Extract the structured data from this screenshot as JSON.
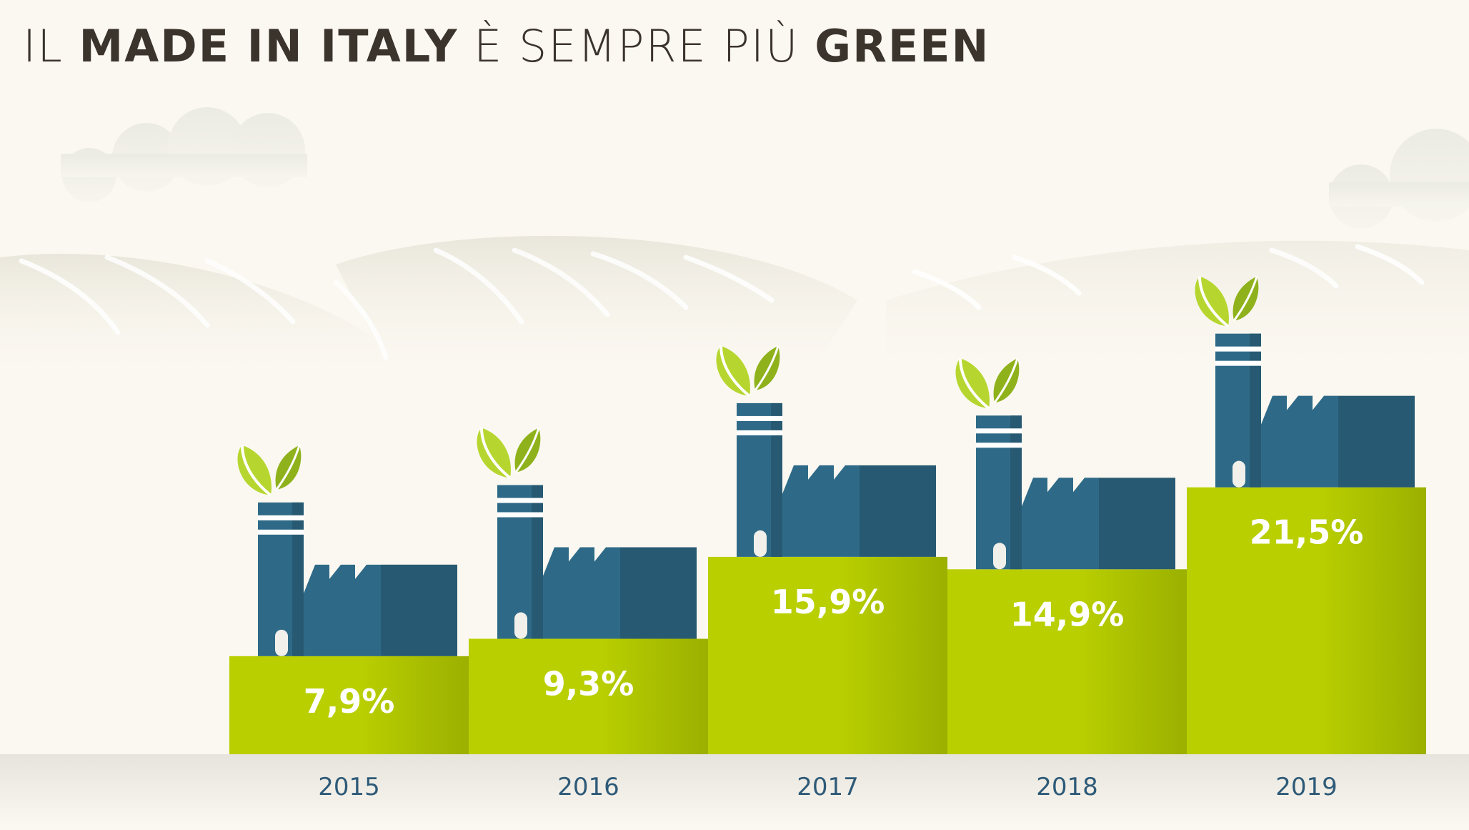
{
  "title": {
    "part1": "IL ",
    "bold1": "MADE IN ITALY",
    "part2": " È SEMPRE PIÙ ",
    "bold2": "GREEN"
  },
  "chart_data": {
    "type": "bar",
    "title": "IL MADE IN ITALY È SEMPRE PIÙ GREEN",
    "categories": [
      "2015",
      "2016",
      "2017",
      "2018",
      "2019"
    ],
    "values": [
      7.9,
      9.3,
      15.9,
      14.9,
      21.5
    ],
    "labels": [
      "7,9%",
      "9,3%",
      "15,9%",
      "14,9%",
      "21,5%"
    ],
    "xlabel": "",
    "ylabel": "",
    "ylim": [
      0,
      22
    ],
    "grid": false,
    "unit": "%"
  },
  "colors": {
    "bar_light": "#b9cf00",
    "bar_dark": "#9bb000",
    "factory_light": "#2e6a87",
    "factory_dark": "#275a72",
    "leaf_light": "#b6d62f",
    "leaf_dark": "#8fb21c",
    "hill": "#ebe8de",
    "ground": "#e8e6de",
    "year_text": "#2e5a78",
    "value_text": "#ffffff",
    "background": "#fbf8f1"
  }
}
